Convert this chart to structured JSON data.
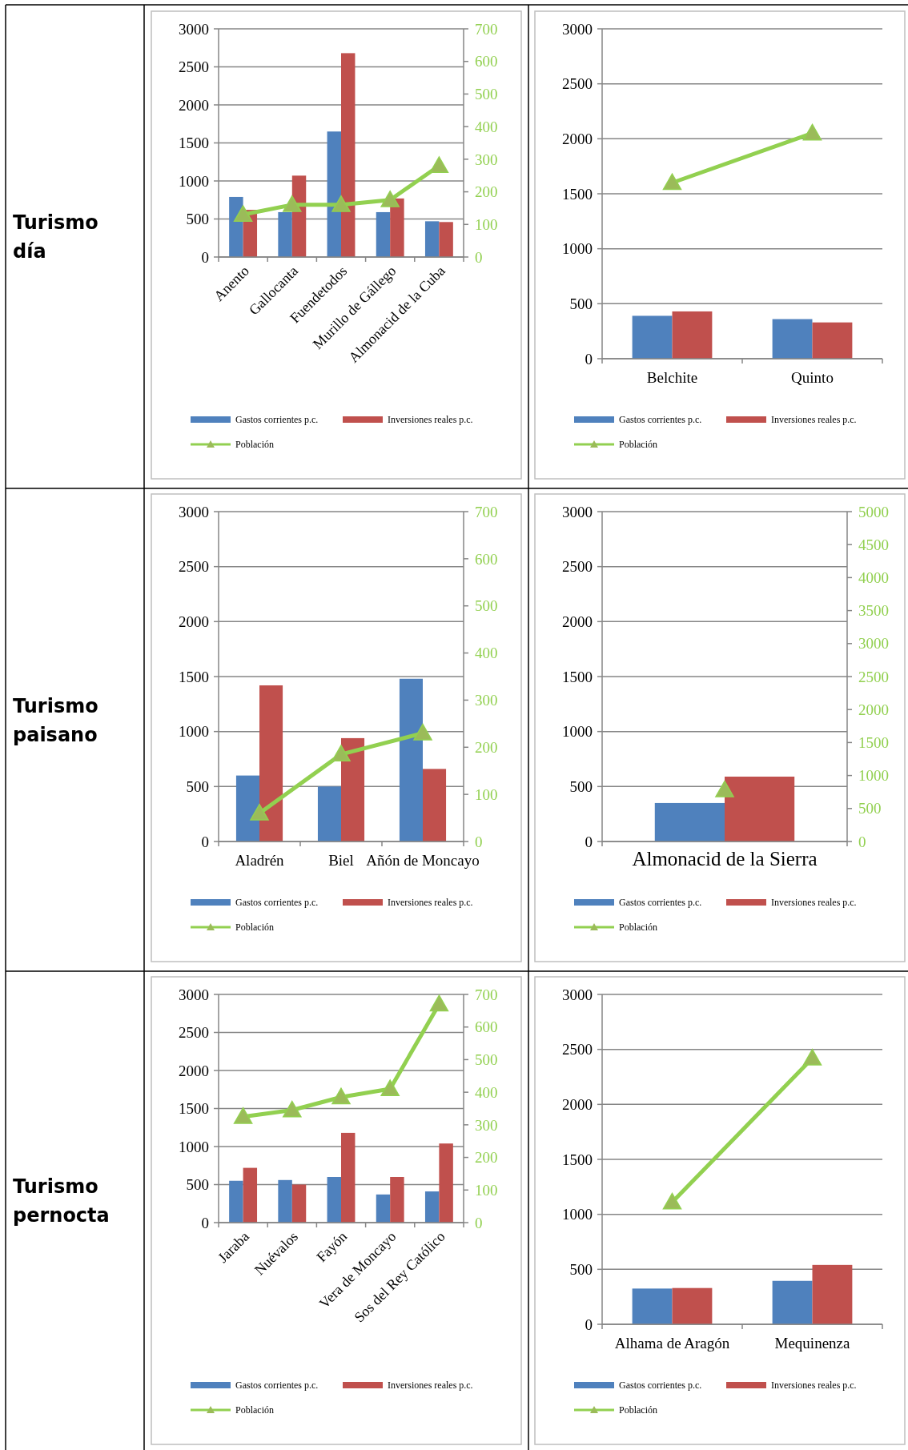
{
  "chart_data": [
    {
      "type": "bar",
      "annotations": [
        "Turismo día"
      ],
      "categories": [
        "Anento",
        "Gallocanta",
        "Fuendetodos",
        "Murillo de Gállego",
        "Almonacid de la Cuba"
      ],
      "series": [
        {
          "name": "Gastos corrientes p.c.",
          "color": "#4f81bd",
          "values": [
            790,
            590,
            1650,
            590,
            470
          ]
        },
        {
          "name": "Inversiones reales p.c.",
          "color": "#c0504d",
          "values": [
            620,
            1070,
            2680,
            770,
            460
          ]
        },
        {
          "name": "Población",
          "type": "line",
          "axis": "y2",
          "color": "#92d050",
          "values": [
            130,
            160,
            160,
            175,
            280
          ]
        }
      ],
      "ylim": [
        0,
        3000
      ],
      "yticks": [
        0,
        500,
        1000,
        1500,
        2000,
        2500,
        3000
      ],
      "y2lim": [
        0,
        700
      ],
      "y2ticks": [
        0,
        100,
        200,
        300,
        400,
        500,
        600,
        700
      ],
      "grid": "y",
      "legend": "bottom",
      "marker": "triangle"
    },
    {
      "type": "bar",
      "categories": [
        "Belchite",
        "Quinto"
      ],
      "series": [
        {
          "name": "Gastos corrientes p.c.",
          "color": "#4f81bd",
          "values": [
            390,
            360
          ]
        },
        {
          "name": "Inversiones reales p.c.",
          "color": "#c0504d",
          "values": [
            430,
            330
          ]
        },
        {
          "name": "Población",
          "type": "line",
          "color": "#92d050",
          "values": [
            1600,
            2050
          ]
        }
      ],
      "ylim": [
        0,
        3000
      ],
      "yticks": [
        0,
        500,
        1000,
        1500,
        2000,
        2500,
        3000
      ],
      "grid": "y",
      "legend": "bottom",
      "marker": "triangle"
    },
    {
      "type": "bar",
      "annotations": [
        "Turismo paisano"
      ],
      "categories": [
        "Aladrén",
        "Biel",
        "Añón de Moncayo"
      ],
      "series": [
        {
          "name": "Gastos corrientes p.c.",
          "color": "#4f81bd",
          "values": [
            600,
            500,
            1480
          ]
        },
        {
          "name": "Inversiones reales p.c.",
          "color": "#c0504d",
          "values": [
            1420,
            940,
            660
          ]
        },
        {
          "name": "Población",
          "type": "line",
          "axis": "y2",
          "color": "#92d050",
          "values": [
            60,
            185,
            230
          ]
        }
      ],
      "ylim": [
        0,
        3000
      ],
      "yticks": [
        0,
        500,
        1000,
        1500,
        2000,
        2500,
        3000
      ],
      "y2lim": [
        0,
        700
      ],
      "y2ticks": [
        0,
        100,
        200,
        300,
        400,
        500,
        600,
        700
      ],
      "grid": "y",
      "legend": "bottom",
      "marker": "triangle"
    },
    {
      "type": "bar",
      "categories": [
        "Almonacid de la Sierra"
      ],
      "series": [
        {
          "name": "Gastos corrientes p.c.",
          "color": "#4f81bd",
          "values": [
            350
          ]
        },
        {
          "name": "Inversiones reales p.c.",
          "color": "#c0504d",
          "values": [
            590
          ]
        },
        {
          "name": "Población",
          "type": "line",
          "axis": "y2",
          "color": "#92d050",
          "values": [
            780
          ]
        }
      ],
      "ylim": [
        0,
        3000
      ],
      "yticks": [
        0,
        500,
        1000,
        1500,
        2000,
        2500,
        3000
      ],
      "y2lim": [
        0,
        5000
      ],
      "y2ticks": [
        0,
        500,
        1000,
        1500,
        2000,
        2500,
        3000,
        3500,
        4000,
        4500,
        5000
      ],
      "grid": "y",
      "legend": "bottom",
      "marker": "triangle"
    },
    {
      "type": "bar",
      "annotations": [
        "Turismo pernocta"
      ],
      "categories": [
        "Jaraba",
        "Nuévalos",
        "Fayón",
        "Vera de Moncayo",
        "Sos del Rey Católico"
      ],
      "series": [
        {
          "name": "Gastos corrientes p.c.",
          "color": "#4f81bd",
          "values": [
            550,
            560,
            600,
            370,
            410
          ]
        },
        {
          "name": "Inversiones reales p.c.",
          "color": "#c0504d",
          "values": [
            720,
            500,
            1180,
            600,
            1040
          ]
        },
        {
          "name": "Población",
          "type": "line",
          "axis": "y2",
          "color": "#92d050",
          "values": [
            325,
            345,
            385,
            410,
            670
          ]
        }
      ],
      "ylim": [
        0,
        3000
      ],
      "yticks": [
        0,
        500,
        1000,
        1500,
        2000,
        2500,
        3000
      ],
      "y2lim": [
        0,
        700
      ],
      "y2ticks": [
        0,
        100,
        200,
        300,
        400,
        500,
        600,
        700
      ],
      "grid": "y",
      "legend": "bottom",
      "marker": "triangle"
    },
    {
      "type": "bar",
      "categories": [
        "Alhama de Aragón",
        "Mequinenza"
      ],
      "series": [
        {
          "name": "Gastos corrientes p.c.",
          "color": "#4f81bd",
          "values": [
            325,
            395
          ]
        },
        {
          "name": "Inversiones reales p.c.",
          "color": "#c0504d",
          "values": [
            330,
            540
          ]
        },
        {
          "name": "Población",
          "type": "line",
          "color": "#92d050",
          "values": [
            1110,
            2420
          ]
        }
      ],
      "ylim": [
        0,
        3000
      ],
      "yticks": [
        0,
        500,
        1000,
        1500,
        2000,
        2500,
        3000
      ],
      "grid": "y",
      "legend": "bottom",
      "marker": "triangle"
    }
  ]
}
